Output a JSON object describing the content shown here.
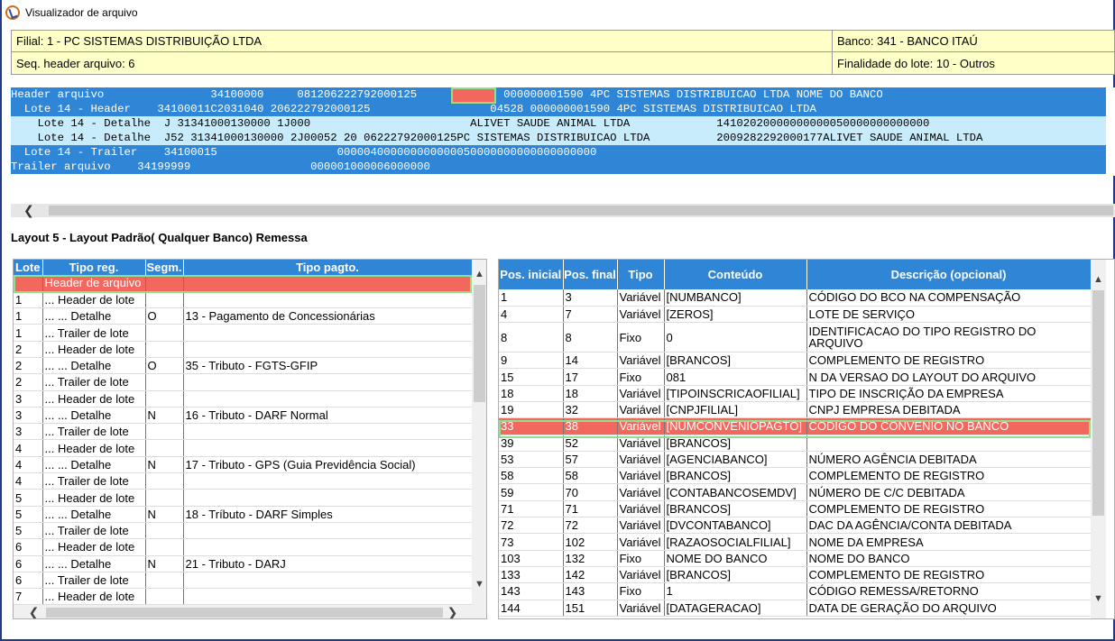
{
  "window": {
    "title": "Visualizador de arquivo"
  },
  "info": {
    "filial": "Filial: 1 - PC SISTEMAS DISTRIBUIÇÃO LTDA",
    "banco": "Banco: 341 - BANCO ITAÚ",
    "seq_header": "Seq. header arquivo: 6",
    "finalidade": "Finalidade do lote: 10 - Outros"
  },
  "records": [
    {
      "label": "Header arquivo",
      "style": "dark",
      "data": "                34100000     081206222792000125       04528 000000001590 4PC SISTEMAS DISTRIBUICAO LTDA NOME DO BANCO"
    },
    {
      "label": "  Lote 14 - Header",
      "style": "dark",
      "data": "    34100011C2031040 206222792000125                  04528 000000001590 4PC SISTEMAS DISTRIBUICAO LTDA"
    },
    {
      "label": "    Lote 14 - Detalhe  J",
      "style": "light",
      "data": " 31341000130000 1J000                        ALIVET SAUDE ANIMAL LTDA             14102020000000000050000000000000"
    },
    {
      "label": "    Lote 14 - Detalhe  J52",
      "style": "light",
      "data": " 31341000130000 2J00052 20 06222792000125PC SISTEMAS DISTRIBUICAO LTDA          2009282292000177ALIVET SAUDE ANIMAL LTDA"
    },
    {
      "label": "  Lote 14 - Trailer",
      "style": "dark",
      "data": "    34100015                  000004000000000000050000000000000000000"
    },
    {
      "label": "Trailer arquivo",
      "style": "dark",
      "data": "    34199999                  000001000006000000"
    }
  ],
  "layout_title": "Layout 5 - Layout Padrão( Qualquer Banco) Remessa",
  "left_grid": {
    "headers": [
      "Lote",
      "Tipo reg.",
      "Segm.",
      "Tipo pagto."
    ],
    "rows": [
      [
        "",
        "Header de arquivo",
        "",
        ""
      ],
      [
        "1",
        "... Header de lote",
        "",
        ""
      ],
      [
        "1",
        "... ... Detalhe",
        "O",
        "13 - Pagamento de Concessionárias"
      ],
      [
        "1",
        "... Trailer de lote",
        "",
        ""
      ],
      [
        "2",
        "... Header de lote",
        "",
        ""
      ],
      [
        "2",
        "... ... Detalhe",
        "O",
        "35 - Tributo - FGTS-GFIP"
      ],
      [
        "2",
        "... Trailer de lote",
        "",
        ""
      ],
      [
        "3",
        "... Header de lote",
        "",
        ""
      ],
      [
        "3",
        "... ... Detalhe",
        "N",
        "16 - Tributo - DARF Normal"
      ],
      [
        "3",
        "... Trailer de lote",
        "",
        ""
      ],
      [
        "4",
        "... Header de lote",
        "",
        ""
      ],
      [
        "4",
        "... ... Detalhe",
        "N",
        "17 - Tributo - GPS (Guia Previdência Social)"
      ],
      [
        "4",
        "... Trailer de lote",
        "",
        ""
      ],
      [
        "5",
        "... Header de lote",
        "",
        ""
      ],
      [
        "5",
        "... ... Detalhe",
        "N",
        "18 - Tríbuto - DARF Simples"
      ],
      [
        "5",
        "... Trailer de lote",
        "",
        ""
      ],
      [
        "6",
        "... Header de lote",
        "",
        ""
      ],
      [
        "6",
        "... ... Detalhe",
        "N",
        "21 - Tributo - DARJ"
      ],
      [
        "6",
        "... Trailer de lote",
        "",
        ""
      ],
      [
        "7",
        "... Header de lote",
        "",
        ""
      ]
    ]
  },
  "right_grid": {
    "headers": [
      "Pos. inicial",
      "Pos. final",
      "Tipo",
      "Conteúdo",
      "Descrição (opcional)"
    ],
    "rows": [
      [
        "1",
        "3",
        "Variável",
        "[NUMBANCO]",
        "CÓDIGO DO BCO NA COMPENSAÇÃO"
      ],
      [
        "4",
        "7",
        "Variável",
        "[ZEROS]",
        "LOTE DE SERVIÇO"
      ],
      [
        "8",
        "8",
        "Fixo",
        "0",
        "IDENTIFICACAO DO TIPO REGISTRO DO ARQUIVO"
      ],
      [
        "9",
        "14",
        "Variável",
        "[BRANCOS]",
        "COMPLEMENTO DE REGISTRO"
      ],
      [
        "15",
        "17",
        "Fixo",
        "081",
        "N DA VERSAO DO LAYOUT DO ARQUIVO"
      ],
      [
        "18",
        "18",
        "Variável",
        "[TIPOINSCRICAOFILIAL]",
        "TIPO DE INSCRIÇÃO DA EMPRESA"
      ],
      [
        "19",
        "32",
        "Variável",
        "[CNPJFILIAL]",
        "CNPJ EMPRESA DEBITADA"
      ],
      [
        "33",
        "38",
        "Variável",
        "[NUMCONVENIOPAGTO]",
        "CODIGO DO CONVENIO NO BANCO"
      ],
      [
        "39",
        "52",
        "Variável",
        "[BRANCOS]",
        ""
      ],
      [
        "53",
        "57",
        "Variável",
        "[AGENCIABANCO]",
        "NÚMERO AGÊNCIA DEBITADA"
      ],
      [
        "58",
        "58",
        "Variável",
        "[BRANCOS]",
        "COMPLEMENTO DE REGISTRO"
      ],
      [
        "59",
        "70",
        "Variável",
        "[CONTABANCOSEMDV]",
        "NÚMERO DE C/C DEBITADA"
      ],
      [
        "71",
        "71",
        "Variável",
        "[BRANCOS]",
        "COMPLEMENTO DE REGISTRO"
      ],
      [
        "72",
        "72",
        "Variável",
        "[DVCONTABANCO]",
        "DAC DA AGÊNCIA/CONTA DEBITADA"
      ],
      [
        "73",
        "102",
        "Variável",
        "[RAZAOSOCIALFILIAL]",
        "NOME DA EMPRESA"
      ],
      [
        "103",
        "132",
        "Fixo",
        "NOME DO BANCO",
        "NOME DO BANCO"
      ],
      [
        "133",
        "142",
        "Variável",
        "[BRANCOS]",
        "COMPLEMENTO DE REGISTRO"
      ],
      [
        "143",
        "143",
        "Fixo",
        "1",
        "CÓDIGO REMESSA/RETORNO"
      ],
      [
        "144",
        "151",
        "Variável",
        "[DATAGERACAO]",
        "DATA DE GERAÇÃO DO ARQUIVO"
      ]
    ]
  },
  "icons": {
    "scroll_up": "▲",
    "scroll_down": "▼",
    "scroll_left": "❮",
    "scroll_right": "❯"
  }
}
